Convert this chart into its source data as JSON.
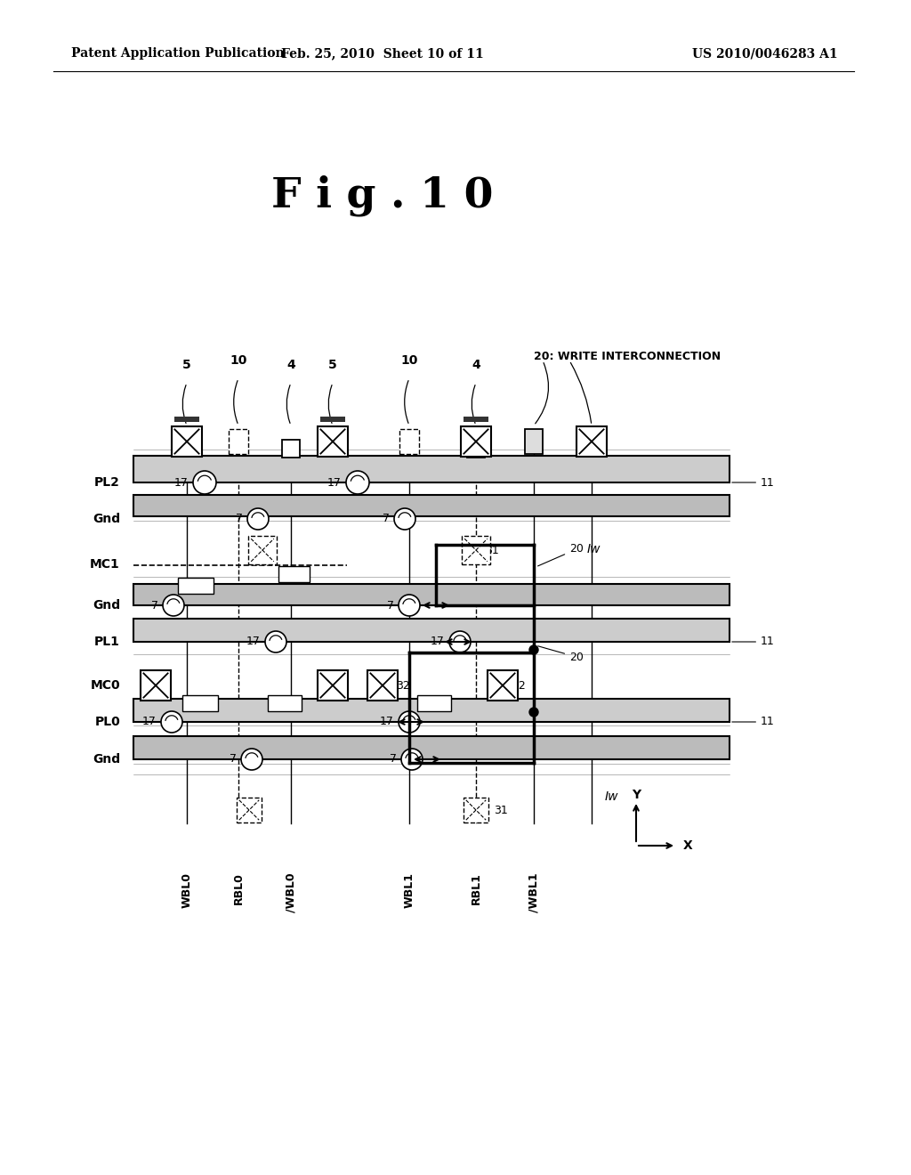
{
  "background_color": "#ffffff",
  "header_left": "Patent Application Publication",
  "header_center": "Feb. 25, 2010  Sheet 10 of 11",
  "header_right": "US 2010/0046283 A1",
  "fig_title": "F i g . 1 0"
}
